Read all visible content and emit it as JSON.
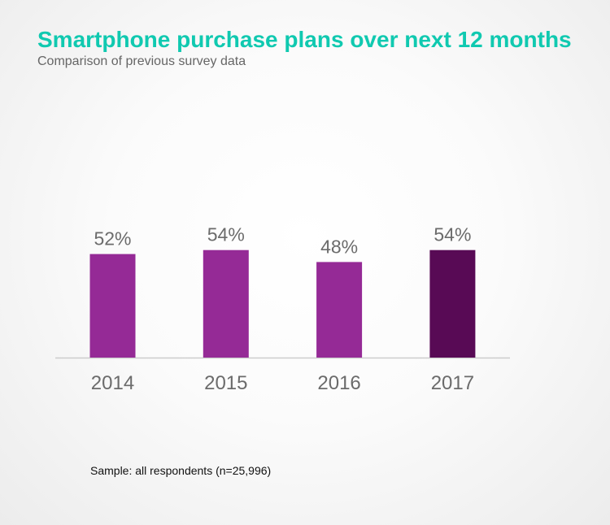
{
  "header": {
    "title": "Smartphone purchase plans over next 12 months",
    "subtitle": "Comparison of previous survey data"
  },
  "footnote": "Sample: all respondents (n=25,996)",
  "colors": {
    "title": "#10c9b0",
    "bar": "#952a96",
    "bar_highlight": "#580a55",
    "axis": "#cccccc",
    "label": "#6b6b6b"
  },
  "chart_data": {
    "type": "bar",
    "title": "Smartphone purchase plans over next 12 months",
    "subtitle": "Comparison of previous survey data",
    "categories": [
      "2014",
      "2015",
      "2016",
      "2017"
    ],
    "values": [
      52,
      54,
      48,
      54
    ],
    "value_labels": [
      "52%",
      "54%",
      "48%",
      "54%"
    ],
    "highlight_index": 3,
    "unit": "%",
    "xlabel": "",
    "ylabel": "",
    "ylim": [
      0,
      100
    ],
    "grid": false,
    "legend": "none"
  }
}
